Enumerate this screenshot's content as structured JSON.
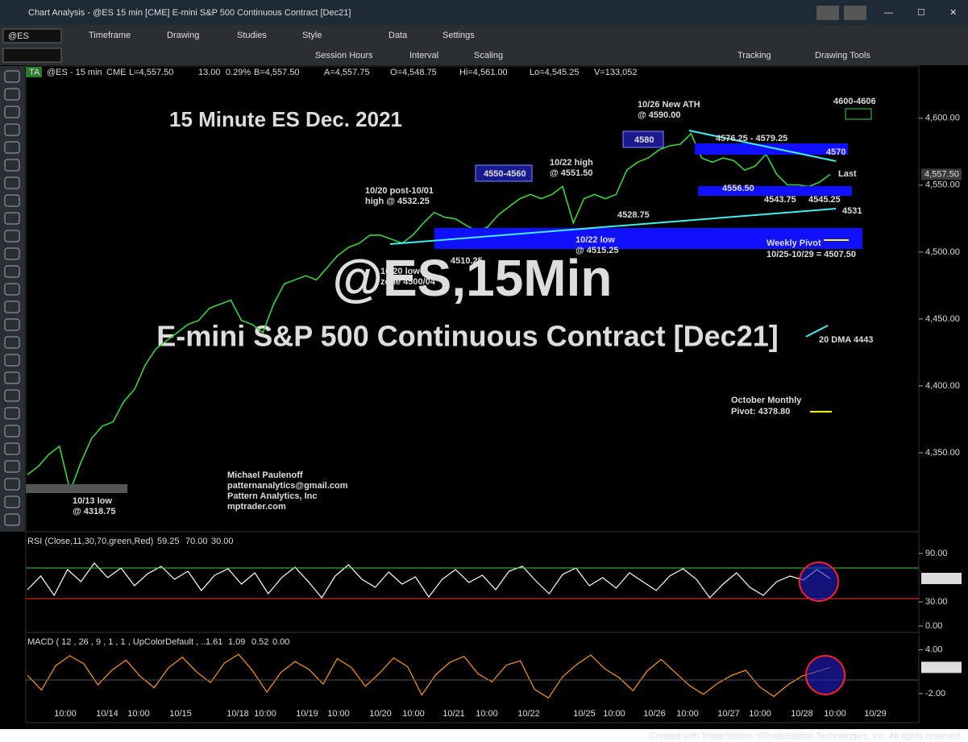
{
  "window": {
    "title": "Chart Analysis - @ES 15 min [CME] E-mini S&P 500 Continuous Contract [Dec21]"
  },
  "toolbar": {
    "symbol": "@ES",
    "items": [
      "Timeframe",
      "Drawing",
      "Studies",
      "Style",
      "Data",
      "Settings"
    ],
    "items2": [
      "Session Hours",
      "Interval",
      "Scaling",
      "Tracking",
      "Drawing Tools"
    ]
  },
  "status": {
    "tag": "TA",
    "symbol": "@ES - 15 min",
    "exchange": "CME",
    "last": "L=4,557.50",
    "change": "13.00",
    "pct": "0.29%",
    "bid": "B=4,557.50",
    "ask": "A=4,557.75",
    "open": "O=4,548.75",
    "high": "Hi=4,561.00",
    "low": "Lo=4,545.25",
    "volume": "V=133,052"
  },
  "watermark": {
    "line1": "@ES,15Min",
    "line2": "E-mini S&P 500 Continuous Contract [Dec21]"
  },
  "author": [
    "Michael Paulenoff",
    "patternanalytics@gmail.com",
    "Pattern Analytics, Inc",
    "mptrader.com"
  ],
  "annotations": [
    "10/26 New ATH",
    "@ 4590.00",
    "4576.25 - 4579.25",
    "10/22 high",
    "@ 4551.50",
    "10/20 post-10/01",
    "high @ 4532.25",
    "4528.75",
    "4556.50",
    "4543.75",
    "4545.25",
    "4531",
    "Last",
    "Weekly Pivot",
    "10/25-10/29 = 4507.50",
    "4510.25",
    "10/22 low",
    "@ 4515.25",
    "10/20 low-",
    "zone 4500/04",
    "20 DMA 4443",
    "October Monthly",
    "Pivot: 4378.80",
    "10/13 low",
    "@ 4318.75",
    "4550-4560",
    "4580",
    "4570",
    "4600-4606"
  ],
  "time_axis": {
    "labels": [
      "10:00",
      "10/14",
      "10:00",
      "10/15",
      "10/18",
      "10:00",
      "10/19",
      "10:00",
      "10/20",
      "10:00",
      "10/21",
      "10:00",
      "10/22",
      "10/25",
      "10:00",
      "10/26",
      "10:00",
      "10/27",
      "10:00",
      "10/28",
      "10:00",
      "10/29"
    ]
  },
  "footer": "Created with TradeStation. ©TradeStation Technologies, Inc. All rights reserved.",
  "chart_data": [
    {
      "type": "line",
      "title": "15 Minute ES Dec. 2021",
      "last_tag": "4,557.50",
      "ylim": [
        4291,
        4639
      ],
      "yticks": [
        {
          "value": 4350,
          "label": "4,350.00"
        },
        {
          "value": 4400,
          "label": "4,400.00"
        },
        {
          "value": 4450,
          "label": "4,450.00"
        },
        {
          "value": 4500,
          "label": "4,500.00"
        },
        {
          "value": 4550,
          "label": "4,550.00"
        },
        {
          "value": 4600,
          "label": "4,600.00"
        }
      ],
      "series": [
        {
          "name": "@ES",
          "color": "#3cd23c",
          "values": [
            4333.6,
            4339.7,
            4348.8,
            4354.9,
            4321.5,
            4342.7,
            4360.9,
            4370,
            4373.1,
            4388.2,
            4397.3,
            4415.5,
            4427.7,
            4433.7,
            4439.8,
            4445.9,
            4448.9,
            4458,
            4461,
            4464.1,
            4448.9,
            4445.9,
            4439.8,
            4461,
            4476.2,
            4479.2,
            4482.3,
            4479.2,
            4488.3,
            4497.5,
            4503.5,
            4506.6,
            4512.6,
            4512.6,
            4509.6,
            4506.6,
            4512.6,
            4521.7,
            4529.6,
            4526,
            4524.8,
            4519.9,
            4515.7,
            4518.7,
            4527.8,
            4533.9,
            4539.9,
            4543,
            4539.9,
            4543,
            4549,
            4521.7,
            4539.9,
            4543,
            4539.9,
            4543,
            4561.2,
            4567.2,
            4570.3,
            4576.3,
            4579.4,
            4580.6,
            4588.5,
            4570.3,
            4567.2,
            4570.3,
            4568.4,
            4561.2,
            4564.2,
            4573.3,
            4558.1,
            4550.2,
            4550.2,
            4549,
            4552.1,
            4558.1
          ]
        }
      ]
    },
    {
      "type": "line",
      "title": "RSI (Close,11,30,70,green,Red)",
      "readings": [
        "59.25",
        "70.00",
        "30.00"
      ],
      "last_tag": "59.25",
      "ylim": [
        -8,
        117
      ],
      "yticks": [
        {
          "value": 0,
          "label": "0.00"
        },
        {
          "value": 30,
          "label": "30.00"
        },
        {
          "value": 90,
          "label": "90.00"
        }
      ],
      "series": [
        {
          "name": "RSI",
          "color": "#ffffff",
          "values": [
            45,
            62,
            38,
            70,
            55,
            78,
            60,
            72,
            50,
            65,
            74,
            58,
            68,
            44,
            63,
            71,
            52,
            66,
            40,
            60,
            73,
            55,
            35,
            62,
            76,
            58,
            48,
            67,
            52,
            61,
            36,
            58,
            70,
            54,
            63,
            45,
            68,
            74,
            56,
            40,
            64,
            72,
            50,
            60,
            47,
            66,
            55,
            44,
            62,
            71,
            58,
            35,
            52,
            66,
            48,
            38,
            55,
            62,
            57,
            70,
            59
          ]
        }
      ]
    },
    {
      "type": "line",
      "title": "MACD ( 12 , 26 , 9 , 1 , 1 , UpColorDefault , ...",
      "readings": [
        "1.61",
        "1.09",
        "0.52",
        "0.00"
      ],
      "last_tag": "0.52",
      "ylim": [
        -6,
        6.4
      ],
      "yticks": [
        {
          "value": -2,
          "label": "-2.00"
        },
        {
          "value": 4,
          "label": "4.00"
        }
      ],
      "series": [
        {
          "name": "MACD",
          "color": "#ff9a1e",
          "values": [
            0.5,
            -1.5,
            1.8,
            3.2,
            2.1,
            -0.8,
            1.2,
            2.6,
            0.4,
            -1.2,
            1.5,
            3.0,
            1.0,
            -0.5,
            2.2,
            3.4,
            1.1,
            -1.8,
            0.9,
            2.4,
            1.3,
            -0.7,
            2.8,
            1.6,
            -1.0,
            0.8,
            2.9,
            1.7,
            -2.2,
            0.6,
            2.3,
            3.1,
            0.7,
            -0.4,
            1.9,
            2.5,
            -1.4,
            -2.6,
            0.3,
            2.0,
            3.3,
            1.4,
            0.2,
            -1.6,
            1.1,
            2.7,
            0.9,
            -0.9,
            -2.1,
            -0.6,
            0.5,
            1.2,
            -1.1,
            -2.4,
            -0.8,
            0.4,
            1.0,
            1.6
          ]
        }
      ]
    }
  ]
}
